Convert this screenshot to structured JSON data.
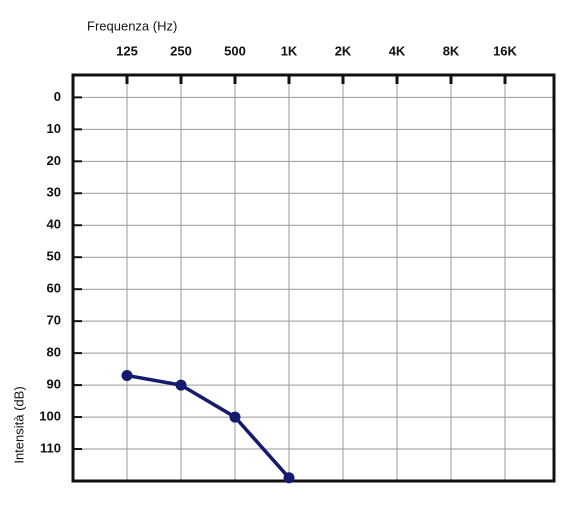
{
  "chart_data": {
    "type": "line",
    "x_label": "Frequenza (Hz)",
    "y_label": "Intensità (dB)",
    "categories": [
      "125",
      "250",
      "500",
      "1K",
      "2K",
      "4K",
      "8K",
      "16K"
    ],
    "values": [
      87,
      90,
      100,
      119,
      null,
      null,
      null,
      null
    ],
    "color": "#141a6e",
    "ylim": [
      -7,
      120
    ],
    "yticks": [
      0,
      10,
      20,
      30,
      40,
      50,
      60,
      70,
      80,
      90,
      100,
      110
    ],
    "y_inverted": true,
    "grid": true
  }
}
